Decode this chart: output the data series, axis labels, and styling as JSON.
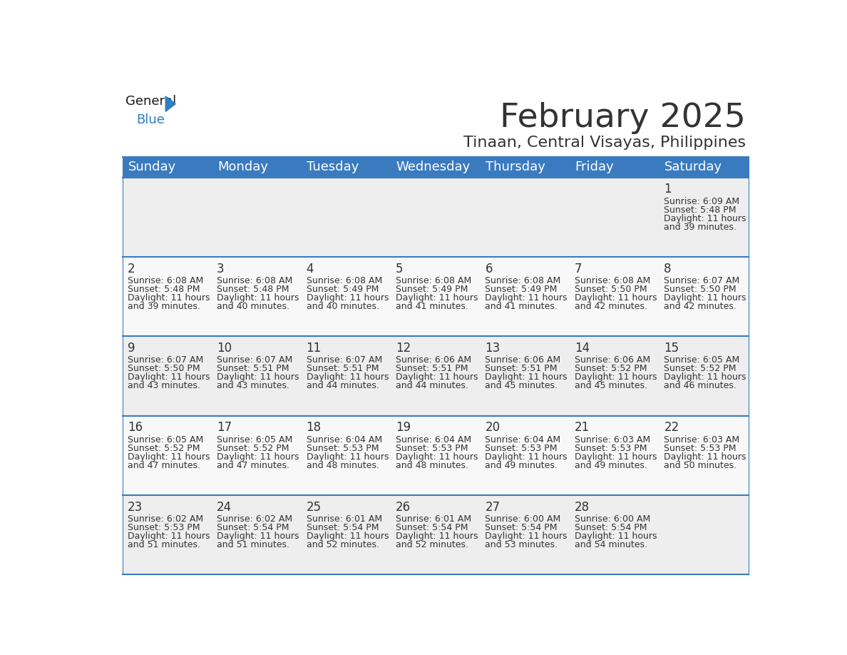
{
  "title": "February 2025",
  "subtitle": "Tinaan, Central Visayas, Philippines",
  "header_color": "#3a7bbf",
  "header_text_color": "#ffffff",
  "cell_bg_even": "#eeeeee",
  "cell_bg_odd": "#f8f8f8",
  "day_names": [
    "Sunday",
    "Monday",
    "Tuesday",
    "Wednesday",
    "Thursday",
    "Friday",
    "Saturday"
  ],
  "title_fontsize": 34,
  "subtitle_fontsize": 16,
  "header_fontsize": 13,
  "day_num_fontsize": 12,
  "cell_fontsize": 9,
  "days": [
    {
      "day": 1,
      "col": 6,
      "row": 0,
      "sunrise": "6:09 AM",
      "sunset": "5:48 PM",
      "daylight_h": "11 hours",
      "daylight_m": "39 minutes."
    },
    {
      "day": 2,
      "col": 0,
      "row": 1,
      "sunrise": "6:08 AM",
      "sunset": "5:48 PM",
      "daylight_h": "11 hours",
      "daylight_m": "39 minutes."
    },
    {
      "day": 3,
      "col": 1,
      "row": 1,
      "sunrise": "6:08 AM",
      "sunset": "5:48 PM",
      "daylight_h": "11 hours",
      "daylight_m": "40 minutes."
    },
    {
      "day": 4,
      "col": 2,
      "row": 1,
      "sunrise": "6:08 AM",
      "sunset": "5:49 PM",
      "daylight_h": "11 hours",
      "daylight_m": "40 minutes."
    },
    {
      "day": 5,
      "col": 3,
      "row": 1,
      "sunrise": "6:08 AM",
      "sunset": "5:49 PM",
      "daylight_h": "11 hours",
      "daylight_m": "41 minutes."
    },
    {
      "day": 6,
      "col": 4,
      "row": 1,
      "sunrise": "6:08 AM",
      "sunset": "5:49 PM",
      "daylight_h": "11 hours",
      "daylight_m": "41 minutes."
    },
    {
      "day": 7,
      "col": 5,
      "row": 1,
      "sunrise": "6:08 AM",
      "sunset": "5:50 PM",
      "daylight_h": "11 hours",
      "daylight_m": "42 minutes."
    },
    {
      "day": 8,
      "col": 6,
      "row": 1,
      "sunrise": "6:07 AM",
      "sunset": "5:50 PM",
      "daylight_h": "11 hours",
      "daylight_m": "42 minutes."
    },
    {
      "day": 9,
      "col": 0,
      "row": 2,
      "sunrise": "6:07 AM",
      "sunset": "5:50 PM",
      "daylight_h": "11 hours",
      "daylight_m": "43 minutes."
    },
    {
      "day": 10,
      "col": 1,
      "row": 2,
      "sunrise": "6:07 AM",
      "sunset": "5:51 PM",
      "daylight_h": "11 hours",
      "daylight_m": "43 minutes."
    },
    {
      "day": 11,
      "col": 2,
      "row": 2,
      "sunrise": "6:07 AM",
      "sunset": "5:51 PM",
      "daylight_h": "11 hours",
      "daylight_m": "44 minutes."
    },
    {
      "day": 12,
      "col": 3,
      "row": 2,
      "sunrise": "6:06 AM",
      "sunset": "5:51 PM",
      "daylight_h": "11 hours",
      "daylight_m": "44 minutes."
    },
    {
      "day": 13,
      "col": 4,
      "row": 2,
      "sunrise": "6:06 AM",
      "sunset": "5:51 PM",
      "daylight_h": "11 hours",
      "daylight_m": "45 minutes."
    },
    {
      "day": 14,
      "col": 5,
      "row": 2,
      "sunrise": "6:06 AM",
      "sunset": "5:52 PM",
      "daylight_h": "11 hours",
      "daylight_m": "45 minutes."
    },
    {
      "day": 15,
      "col": 6,
      "row": 2,
      "sunrise": "6:05 AM",
      "sunset": "5:52 PM",
      "daylight_h": "11 hours",
      "daylight_m": "46 minutes."
    },
    {
      "day": 16,
      "col": 0,
      "row": 3,
      "sunrise": "6:05 AM",
      "sunset": "5:52 PM",
      "daylight_h": "11 hours",
      "daylight_m": "47 minutes."
    },
    {
      "day": 17,
      "col": 1,
      "row": 3,
      "sunrise": "6:05 AM",
      "sunset": "5:52 PM",
      "daylight_h": "11 hours",
      "daylight_m": "47 minutes."
    },
    {
      "day": 18,
      "col": 2,
      "row": 3,
      "sunrise": "6:04 AM",
      "sunset": "5:53 PM",
      "daylight_h": "11 hours",
      "daylight_m": "48 minutes."
    },
    {
      "day": 19,
      "col": 3,
      "row": 3,
      "sunrise": "6:04 AM",
      "sunset": "5:53 PM",
      "daylight_h": "11 hours",
      "daylight_m": "48 minutes."
    },
    {
      "day": 20,
      "col": 4,
      "row": 3,
      "sunrise": "6:04 AM",
      "sunset": "5:53 PM",
      "daylight_h": "11 hours",
      "daylight_m": "49 minutes."
    },
    {
      "day": 21,
      "col": 5,
      "row": 3,
      "sunrise": "6:03 AM",
      "sunset": "5:53 PM",
      "daylight_h": "11 hours",
      "daylight_m": "49 minutes."
    },
    {
      "day": 22,
      "col": 6,
      "row": 3,
      "sunrise": "6:03 AM",
      "sunset": "5:53 PM",
      "daylight_h": "11 hours",
      "daylight_m": "50 minutes."
    },
    {
      "day": 23,
      "col": 0,
      "row": 4,
      "sunrise": "6:02 AM",
      "sunset": "5:53 PM",
      "daylight_h": "11 hours",
      "daylight_m": "51 minutes."
    },
    {
      "day": 24,
      "col": 1,
      "row": 4,
      "sunrise": "6:02 AM",
      "sunset": "5:54 PM",
      "daylight_h": "11 hours",
      "daylight_m": "51 minutes."
    },
    {
      "day": 25,
      "col": 2,
      "row": 4,
      "sunrise": "6:01 AM",
      "sunset": "5:54 PM",
      "daylight_h": "11 hours",
      "daylight_m": "52 minutes."
    },
    {
      "day": 26,
      "col": 3,
      "row": 4,
      "sunrise": "6:01 AM",
      "sunset": "5:54 PM",
      "daylight_h": "11 hours",
      "daylight_m": "52 minutes."
    },
    {
      "day": 27,
      "col": 4,
      "row": 4,
      "sunrise": "6:00 AM",
      "sunset": "5:54 PM",
      "daylight_h": "11 hours",
      "daylight_m": "53 minutes."
    },
    {
      "day": 28,
      "col": 5,
      "row": 4,
      "sunrise": "6:00 AM",
      "sunset": "5:54 PM",
      "daylight_h": "11 hours",
      "daylight_m": "54 minutes."
    }
  ],
  "n_rows": 5,
  "n_cols": 7,
  "line_color": "#3a7bbf",
  "text_color": "#333333",
  "logo_general_color": "#1a1a1a",
  "logo_blue_color": "#2e7fc0",
  "logo_triangle_color": "#2e7fc0"
}
